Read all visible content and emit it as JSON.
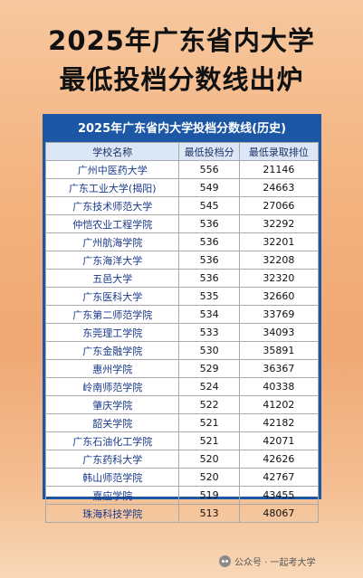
{
  "headline": {
    "line1": "2025年广东省内大学",
    "line2": "最低投档分数线出炉"
  },
  "table": {
    "title": "2025年广东省内大学投档分数线(历史)",
    "headers": [
      "学校名称",
      "最低投档分",
      "最低录取排位"
    ],
    "rows": [
      {
        "school": "广州中医药大学",
        "score": "556",
        "rank": "21146"
      },
      {
        "school": "广东工业大学(揭阳)",
        "score": "549",
        "rank": "24663"
      },
      {
        "school": "广东技术师范大学",
        "score": "545",
        "rank": "27066"
      },
      {
        "school": "仲恺农业工程学院",
        "score": "536",
        "rank": "32292"
      },
      {
        "school": "广州航海学院",
        "score": "536",
        "rank": "32201"
      },
      {
        "school": "广东海洋大学",
        "score": "536",
        "rank": "32208"
      },
      {
        "school": "五邑大学",
        "score": "536",
        "rank": "32320"
      },
      {
        "school": "广东医科大学",
        "score": "535",
        "rank": "32660"
      },
      {
        "school": "广东第二师范学院",
        "score": "534",
        "rank": "33769"
      },
      {
        "school": "东莞理工学院",
        "score": "533",
        "rank": "34093"
      },
      {
        "school": "广东金融学院",
        "score": "530",
        "rank": "35891"
      },
      {
        "school": "惠州学院",
        "score": "529",
        "rank": "36367"
      },
      {
        "school": "岭南师范学院",
        "score": "524",
        "rank": "40338"
      },
      {
        "school": "肇庆学院",
        "score": "522",
        "rank": "41202"
      },
      {
        "school": "韶关学院",
        "score": "521",
        "rank": "42182"
      },
      {
        "school": "广东石油化工学院",
        "score": "521",
        "rank": "42071"
      },
      {
        "school": "广东药科大学",
        "score": "520",
        "rank": "42626"
      },
      {
        "school": "韩山师范学院",
        "score": "520",
        "rank": "42767"
      },
      {
        "school": "嘉应学院",
        "score": "519",
        "rank": "43455"
      },
      {
        "school": "珠海科技学院",
        "score": "513",
        "rank": "48067"
      }
    ]
  },
  "footer": {
    "icon": "wechat-icon",
    "text": "公众号 · 一起考大学"
  }
}
